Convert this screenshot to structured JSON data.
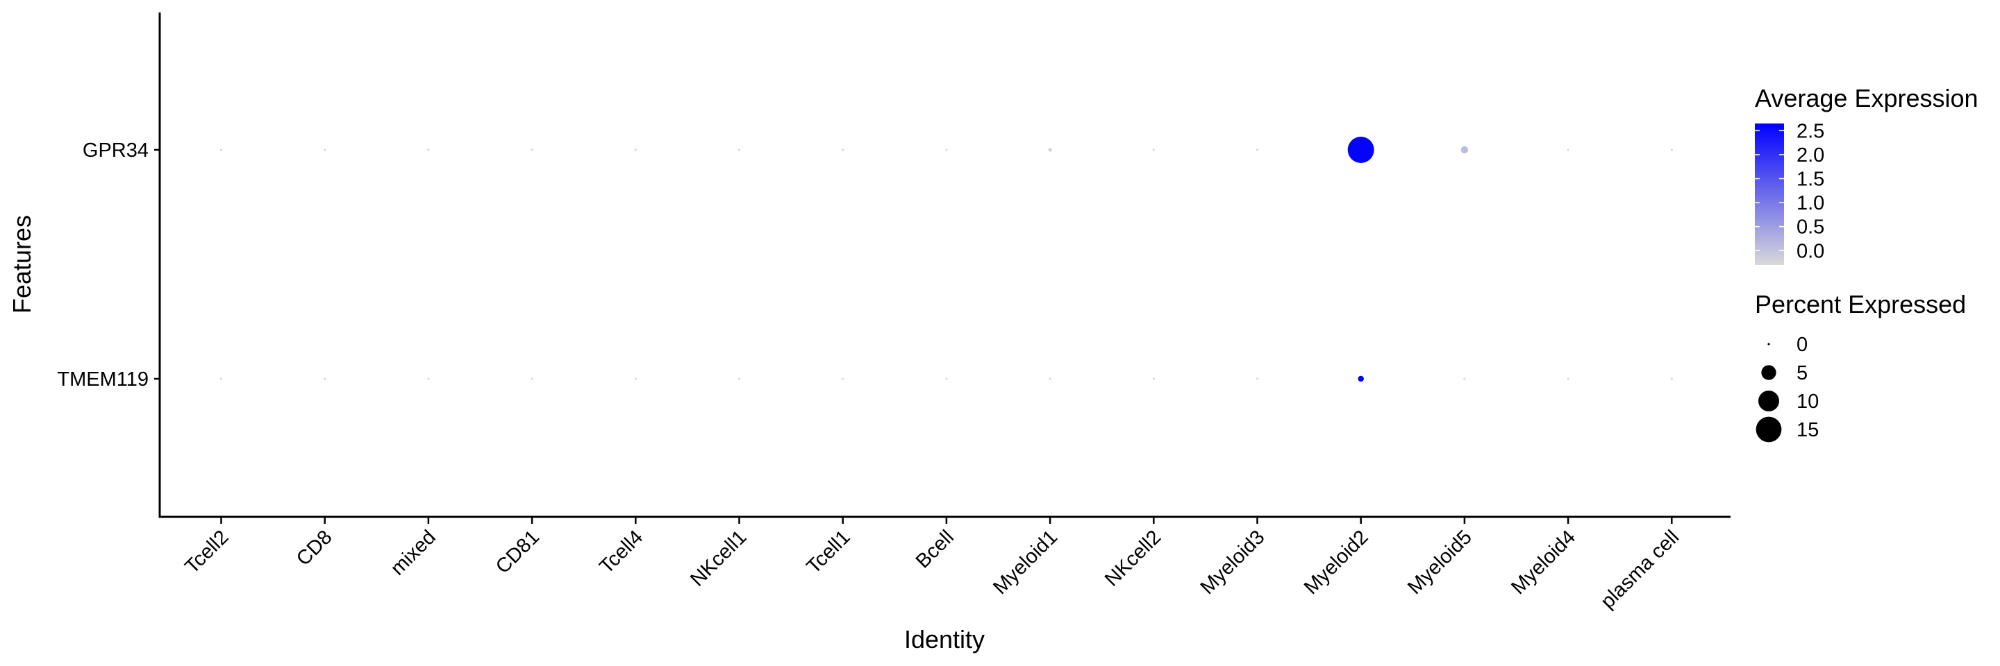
{
  "chart_data": {
    "type": "dot",
    "title": "",
    "xlabel": "Identity",
    "ylabel": "Features",
    "categories": [
      "Tcell2",
      "CD8",
      "mixed",
      "CD81",
      "Tcell4",
      "NKcell1",
      "Tcell1",
      "Bcell",
      "Myeloid1",
      "NKcell2",
      "Myeloid3",
      "Myeloid2",
      "Myeloid5",
      "Myeloid4",
      "plasma cell"
    ],
    "features": [
      "GPR34",
      "TMEM119"
    ],
    "average_expression": {
      "GPR34": [
        -0.3,
        -0.3,
        -0.3,
        -0.3,
        -0.3,
        -0.3,
        -0.3,
        -0.3,
        -0.2,
        -0.3,
        -0.3,
        2.6,
        0.1,
        -0.3,
        -0.3
      ],
      "TMEM119": [
        -0.3,
        -0.3,
        -0.3,
        -0.3,
        -0.3,
        -0.3,
        -0.3,
        -0.3,
        -0.3,
        -0.3,
        -0.3,
        2.6,
        -0.3,
        -0.3,
        -0.3
      ]
    },
    "percent_expressed": {
      "GPR34": [
        0.1,
        0.1,
        0.1,
        0.1,
        0.1,
        0.1,
        0.1,
        0.1,
        0.3,
        0.1,
        0.1,
        16,
        1.2,
        0.1,
        0.1
      ],
      "TMEM119": [
        0.1,
        0.1,
        0.1,
        0.1,
        0.1,
        0.1,
        0.1,
        0.1,
        0.1,
        0.1,
        0.1,
        0.8,
        0.1,
        0.1,
        0.1
      ]
    },
    "legend": {
      "color_title": "Average Expression",
      "color_ticks": [
        "2.5",
        "2.0",
        "1.5",
        "1.0",
        "0.5",
        "0.0"
      ],
      "color_tick_values": [
        2.5,
        2.0,
        1.5,
        1.0,
        0.5,
        0.0
      ],
      "color_range": [
        -0.3,
        2.65
      ],
      "color_low": "#d9d9d9",
      "color_high": "#0000ff",
      "size_title": "Percent Expressed",
      "size_labels": [
        "0",
        "5",
        "10",
        "15"
      ],
      "size_values": [
        0,
        5,
        10,
        15
      ],
      "placement": "right"
    },
    "grid": false
  }
}
